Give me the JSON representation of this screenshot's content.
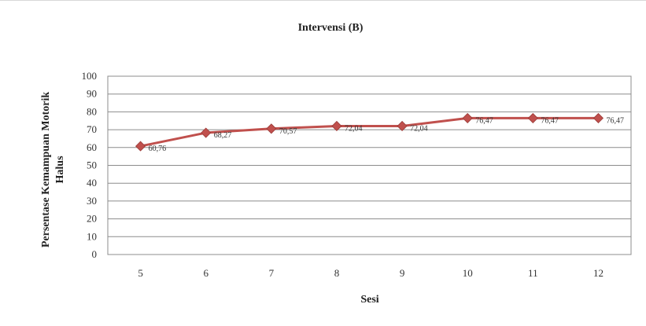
{
  "chart_data": {
    "type": "line",
    "title": "Intervensi (B)",
    "xlabel": "Sesi",
    "ylabel_lines": [
      "Persentase Kemampuan Motorik",
      "Halus"
    ],
    "categories": [
      "5",
      "6",
      "7",
      "8",
      "9",
      "10",
      "11",
      "12"
    ],
    "series": [
      {
        "values": [
          60.76,
          68.27,
          70.57,
          72.04,
          72.04,
          76.47,
          76.47,
          76.47
        ],
        "labels": [
          "60,76",
          "68,27",
          "70,57",
          "72,04",
          "72,04",
          "76,47",
          "76,47",
          "76,47"
        ],
        "color": "#c0504d"
      }
    ],
    "ylim": [
      0,
      100
    ],
    "yticks": [
      "0",
      "10",
      "20",
      "30",
      "40",
      "50",
      "60",
      "70",
      "80",
      "90",
      "100"
    ],
    "grid": true,
    "legend": "none"
  }
}
